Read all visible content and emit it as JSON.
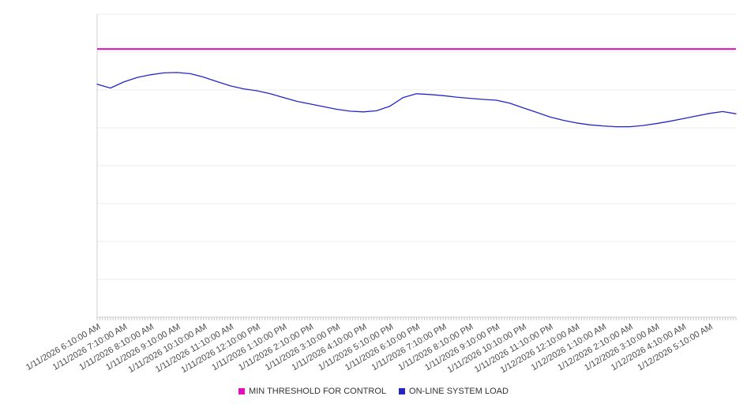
{
  "chart_data": {
    "type": "line",
    "title": "",
    "xlabel": "",
    "ylabel": "",
    "grid": "horizontal",
    "legend_position": "bottom-center",
    "xlim": [
      0,
      24
    ],
    "ylim": [
      0,
      8
    ],
    "x_labels": [
      "1/11/2026 6:10:00 AM",
      "1/11/2026 7:10:00 AM",
      "1/11/2026 8:10:00 AM",
      "1/11/2026 9:10:00 AM",
      "1/11/2026 10:10:00 AM",
      "1/11/2026 11:10:00 AM",
      "1/11/2026 12:10:00 PM",
      "1/11/2026 1:10:00 PM",
      "1/11/2026 2:10:00 PM",
      "1/11/2026 3:10:00 PM",
      "1/11/2026 4:10:00 PM",
      "1/11/2026 5:10:00 PM",
      "1/11/2026 6:10:00 PM",
      "1/11/2026 7:10:00 PM",
      "1/11/2026 8:10:00 PM",
      "1/11/2026 9:10:00 PM",
      "1/11/2026 10:10:00 PM",
      "1/11/2026 11:10:00 PM",
      "1/12/2026 12:10:00 AM",
      "1/12/2026 1:10:00 AM",
      "1/12/2026 2:10:00 AM",
      "1/12/2026 3:10:00 AM",
      "1/12/2026 4:10:00 AM",
      "1/12/2026 5:10:00 AM"
    ],
    "series": [
      {
        "name": "MIN THRESHOLD FOR CONTROL",
        "type": "constant",
        "color": "#e20fc0",
        "value": 7.08
      },
      {
        "name": "ON-LINE SYSTEM LOAD",
        "type": "line",
        "color": "#2526c9",
        "x": [
          0,
          0.5,
          1,
          1.5,
          2,
          2.5,
          3,
          3.5,
          4,
          4.5,
          5,
          5.5,
          6,
          6.5,
          7,
          7.5,
          8,
          8.5,
          9,
          9.5,
          10,
          10.5,
          11,
          11.5,
          12,
          12.5,
          13,
          13.5,
          14,
          14.5,
          15,
          15.5,
          16,
          16.5,
          17,
          17.5,
          18,
          18.5,
          19,
          19.5,
          20,
          20.5,
          21,
          21.5,
          22,
          22.5,
          23,
          23.5,
          24
        ],
        "values": [
          6.15,
          6.05,
          6.21,
          6.33,
          6.4,
          6.45,
          6.46,
          6.43,
          6.34,
          6.22,
          6.11,
          6.03,
          5.98,
          5.9,
          5.8,
          5.7,
          5.63,
          5.56,
          5.49,
          5.44,
          5.42,
          5.45,
          5.57,
          5.8,
          5.9,
          5.88,
          5.85,
          5.81,
          5.78,
          5.75,
          5.73,
          5.65,
          5.53,
          5.41,
          5.29,
          5.2,
          5.13,
          5.08,
          5.05,
          5.03,
          5.03,
          5.06,
          5.11,
          5.17,
          5.24,
          5.31,
          5.38,
          5.43,
          5.37
        ]
      }
    ]
  },
  "legend": {
    "items": [
      {
        "label": "MIN THRESHOLD FOR CONTROL",
        "color": "#e20fc0"
      },
      {
        "label": "ON-LINE SYSTEM LOAD",
        "color": "#2526c9"
      }
    ]
  },
  "style": {
    "grid_color": "#ededed",
    "axis_color": "#cfcfcf",
    "tick_color": "#c4c4c4",
    "label_color": "#4a4a4a"
  }
}
